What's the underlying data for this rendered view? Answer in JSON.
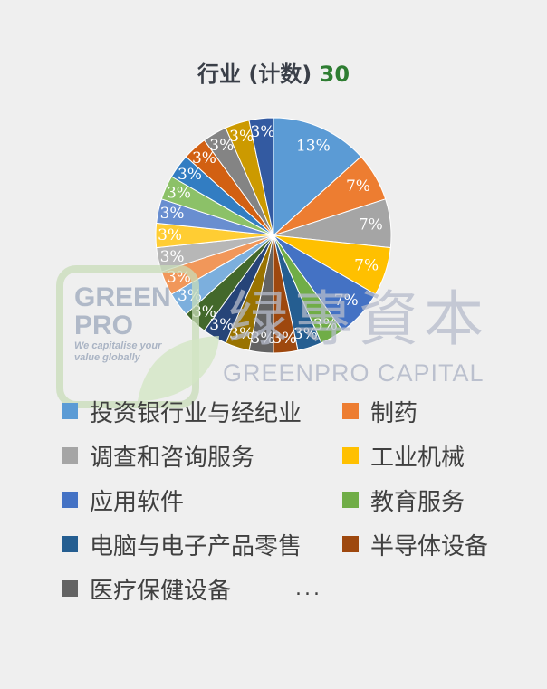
{
  "title": {
    "text": "行业 (计数)",
    "count": "30"
  },
  "watermark": {
    "brand_line1": "GREEN",
    "brand_line2": "PRO",
    "tagline1": "We capitalise your",
    "tagline2": "value globally",
    "chinese": "绿專資本",
    "english": "GREENPRO CAPITAL"
  },
  "legend_more": "...",
  "chart_data": {
    "type": "pie",
    "title": "行业 (计数) 30",
    "slices": [
      {
        "label": "投资银行业与经纪业",
        "value": 4,
        "pct_label": "13%",
        "color": "#5b9bd5",
        "legend": true
      },
      {
        "label": "制药",
        "value": 2,
        "pct_label": "7%",
        "color": "#ed7d31",
        "legend": true
      },
      {
        "label": "调查和咨询服务",
        "value": 2,
        "pct_label": "7%",
        "color": "#a5a5a5",
        "legend": true
      },
      {
        "label": "工业机械",
        "value": 2,
        "pct_label": "7%",
        "color": "#ffc000",
        "legend": true
      },
      {
        "label": "应用软件",
        "value": 2,
        "pct_label": "7%",
        "color": "#4472c4",
        "legend": true
      },
      {
        "label": "教育服务",
        "value": 1,
        "pct_label": "3%",
        "color": "#70ad47",
        "legend": true
      },
      {
        "label": "电脑与电子产品零售",
        "value": 1,
        "pct_label": "3%",
        "color": "#255e91",
        "legend": true
      },
      {
        "label": "半导体设备",
        "value": 1,
        "pct_label": "3%",
        "color": "#9e480e",
        "legend": true
      },
      {
        "label": "医疗保健设备",
        "value": 1,
        "pct_label": "3%",
        "color": "#636363",
        "legend": true
      },
      {
        "label": "",
        "value": 1,
        "pct_label": "3%",
        "color": "#997300",
        "legend": false
      },
      {
        "label": "",
        "value": 1,
        "pct_label": "3%",
        "color": "#264478",
        "legend": false
      },
      {
        "label": "",
        "value": 1,
        "pct_label": "3%",
        "color": "#43682b",
        "legend": false
      },
      {
        "label": "",
        "value": 1,
        "pct_label": "3%",
        "color": "#7cafdd",
        "legend": false
      },
      {
        "label": "",
        "value": 1,
        "pct_label": "3%",
        "color": "#f1975a",
        "legend": false
      },
      {
        "label": "",
        "value": 1,
        "pct_label": "3%",
        "color": "#b7b7b7",
        "legend": false
      },
      {
        "label": "",
        "value": 1,
        "pct_label": "3%",
        "color": "#ffcd33",
        "legend": false
      },
      {
        "label": "",
        "value": 1,
        "pct_label": "3%",
        "color": "#698ed0",
        "legend": false
      },
      {
        "label": "",
        "value": 1,
        "pct_label": "3%",
        "color": "#8cc168",
        "legend": false
      },
      {
        "label": "",
        "value": 1,
        "pct_label": "3%",
        "color": "#327dc2",
        "legend": false
      },
      {
        "label": "",
        "value": 1,
        "pct_label": "3%",
        "color": "#d26012",
        "legend": false
      },
      {
        "label": "",
        "value": 1,
        "pct_label": "3%",
        "color": "#848484",
        "legend": false
      },
      {
        "label": "",
        "value": 1,
        "pct_label": "3%",
        "color": "#cc9a00",
        "legend": false
      },
      {
        "label": "",
        "value": 1,
        "pct_label": "3%",
        "color": "#335aa1",
        "legend": false
      }
    ],
    "legend_placement": "bottom"
  }
}
